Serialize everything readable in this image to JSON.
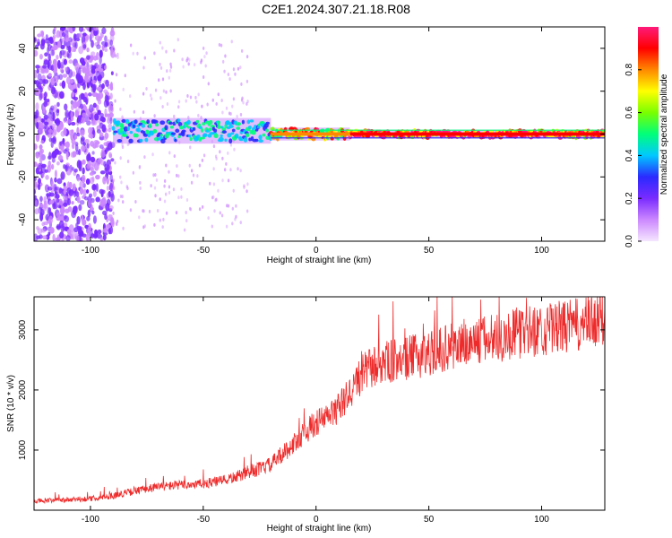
{
  "figure": {
    "title": "C2E1.2024.307.21.18.R08"
  },
  "chart_data": [
    {
      "type": "heatmap",
      "title": "",
      "xlabel": "Height of straight line (km)",
      "ylabel": "Frequency (Hz)",
      "xlim": [
        -125,
        128
      ],
      "ylim": [
        -50,
        50
      ],
      "xticks": [
        -100,
        -50,
        0,
        50,
        100
      ],
      "yticks": [
        -40,
        -20,
        0,
        20,
        40
      ],
      "grid": false,
      "colorbar": {
        "label": "Normalized spectral amplitude",
        "range": [
          0,
          1
        ],
        "ticks": [
          "0.0",
          "0.2",
          "0.4",
          "0.6",
          "0.8"
        ],
        "tick_values": [
          0.0,
          0.2,
          0.4,
          0.6,
          0.8
        ],
        "colormap": [
          "#f5e6ff",
          "#cc88ff",
          "#7a2bff",
          "#2a2aff",
          "#00c8ff",
          "#00ff7a",
          "#7aff00",
          "#ffff00",
          "#ff8800",
          "#ff0000",
          "#ff1a7a"
        ]
      },
      "features": [
        {
          "x_range": [
            -125,
            -90
          ],
          "description_level": "scattered noise",
          "freq_spread": [
            -50,
            50
          ],
          "amplitude": 0.15
        },
        {
          "x_range": [
            -90,
            -20
          ],
          "center_freq": 1.5,
          "width": 6,
          "amplitude": 0.45
        },
        {
          "x_range": [
            -20,
            15
          ],
          "center_freq": 0,
          "width": 3,
          "amplitude": 0.8
        },
        {
          "x_range": [
            15,
            128
          ],
          "center_freq": 0,
          "width": 2,
          "amplitude": 0.95
        }
      ]
    },
    {
      "type": "line",
      "title": "",
      "xlabel": "Height of straight line (km)",
      "ylabel": "SNR (10 * v/v)",
      "xlim": [
        -125,
        128
      ],
      "ylim": [
        0,
        3550
      ],
      "xticks": [
        -100,
        -50,
        0,
        50,
        100
      ],
      "yticks": [
        1000,
        2000,
        3000
      ],
      "grid": false,
      "series": [
        {
          "color": "#ee2b2b",
          "x": [
            -125,
            -110,
            -100,
            -90,
            -80,
            -70,
            -60,
            -50,
            -40,
            -30,
            -20,
            -10,
            -5,
            0,
            5,
            10,
            15,
            20,
            25,
            30,
            40,
            50,
            60,
            70,
            80,
            90,
            100,
            110,
            120,
            128
          ],
          "y": [
            150,
            170,
            190,
            240,
            320,
            390,
            420,
            440,
            500,
            620,
            760,
            1100,
            1300,
            1450,
            1550,
            1700,
            1950,
            2250,
            2380,
            2450,
            2520,
            2620,
            2720,
            2800,
            2870,
            2950,
            3000,
            3050,
            3100,
            3150
          ]
        }
      ]
    }
  ]
}
